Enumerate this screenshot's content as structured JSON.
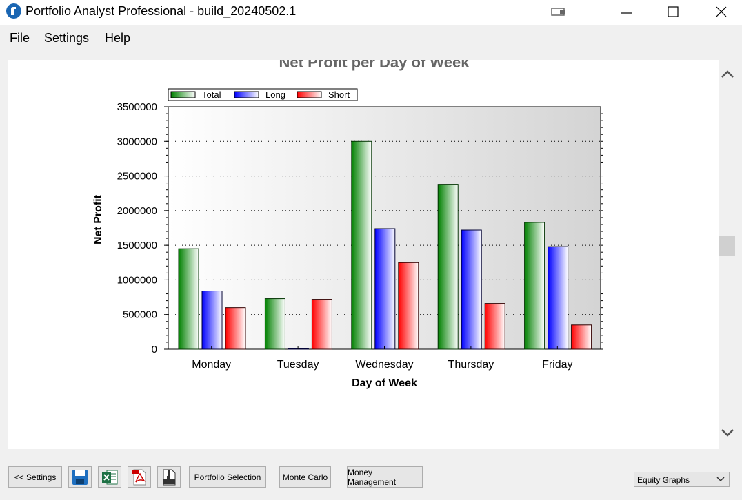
{
  "window": {
    "title": "Portfolio Analyst Professional - build_20240502.1"
  },
  "menu": {
    "items": [
      "File",
      "Settings",
      "Help"
    ]
  },
  "chart_data": {
    "type": "bar",
    "title": "Net Profit per Day of Week",
    "xlabel": "Day of Week",
    "ylabel": "Net Profit",
    "categories": [
      "Monday",
      "Tuesday",
      "Wednesday",
      "Thursday",
      "Friday"
    ],
    "series": [
      {
        "name": "Total",
        "values": [
          1450000,
          730000,
          3000000,
          2380000,
          1830000
        ]
      },
      {
        "name": "Long",
        "values": [
          840000,
          10000,
          1740000,
          1720000,
          1480000
        ]
      },
      {
        "name": "Short",
        "values": [
          600000,
          720000,
          1250000,
          660000,
          350000
        ]
      }
    ],
    "ylim": [
      0,
      3500000
    ],
    "yticks": [
      "0",
      "500000",
      "1000000",
      "1500000",
      "2000000",
      "2500000",
      "3000000",
      "3500000"
    ],
    "legend": "top-left",
    "grid": true,
    "colors": {
      "Total": "#008000",
      "Long": "#0000ff",
      "Short": "#ff0000"
    }
  },
  "toolbar": {
    "settings_label": "<< Settings",
    "portfolio_selection_label": "Portfolio Selection",
    "monte_carlo_label": "Monte Carlo",
    "money_management_label": "Money Management",
    "view_select_value": "Equity Graphs"
  },
  "icons": {
    "save": "floppy-disk-icon",
    "excel": "excel-icon",
    "pdf": "pdf-icon",
    "zip": "zip-icon"
  }
}
